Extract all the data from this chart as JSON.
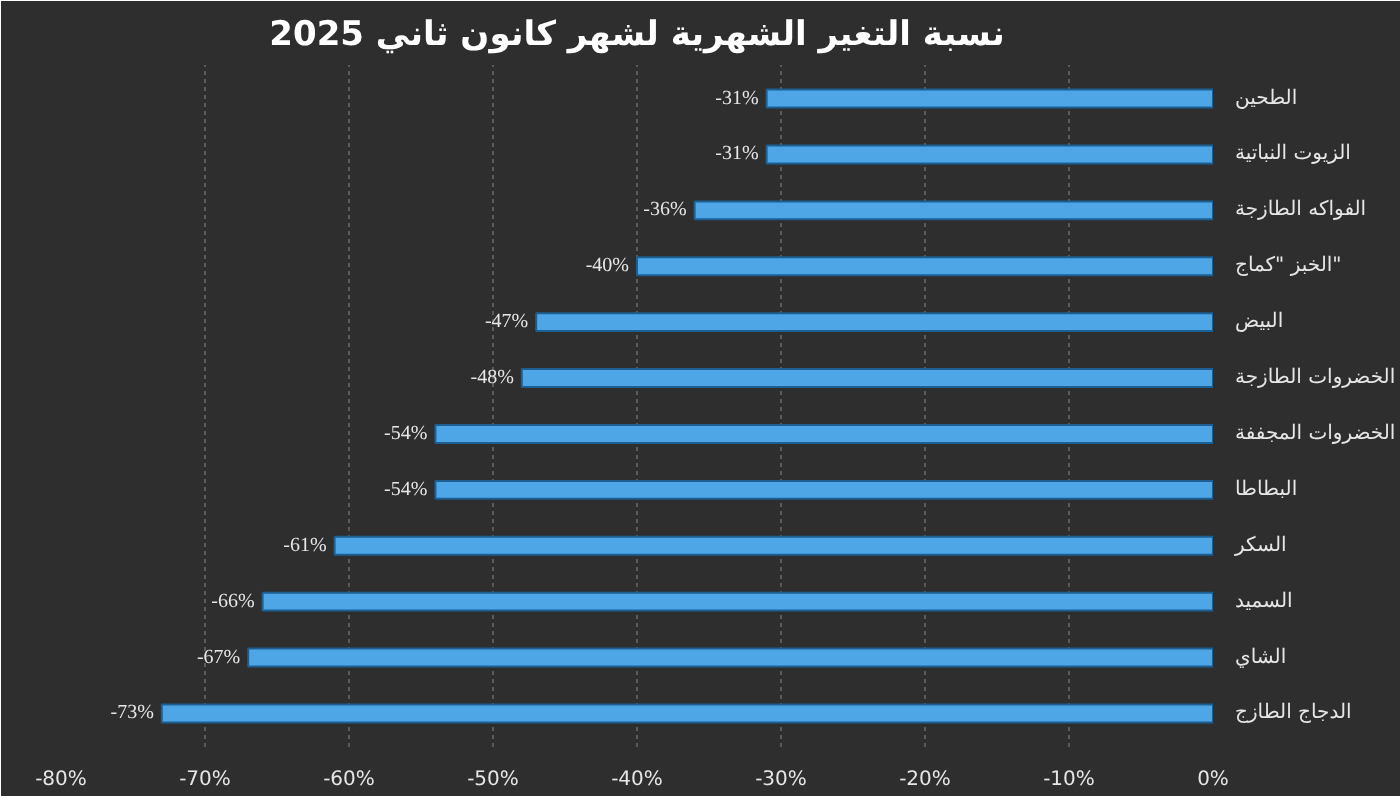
{
  "chart_data": {
    "type": "bar",
    "orientation": "horizontal",
    "title": "نسبة التغير الشهرية لشهر كانون ثاني 2025",
    "categories": [
      "الطحين",
      "الزيوت النباتية",
      "الفواكه الطازجة",
      "الخبز \"كماج\"",
      "البيض",
      "الخضروات الطازجة",
      "الخضروات المجففة",
      "البطاطا",
      "السكر",
      "السميد",
      "الشاي",
      "الدجاج الطازج"
    ],
    "values": [
      -31,
      -31,
      -36,
      -40,
      -47,
      -48,
      -54,
      -54,
      -61,
      -66,
      -67,
      -73
    ],
    "value_labels": [
      "-31%",
      "-31%",
      "-36%",
      "-40%",
      "-47%",
      "-48%",
      "-54%",
      "-54%",
      "-61%",
      "-66%",
      "-67%",
      "-73%"
    ],
    "color": "#4ea6e6",
    "xlim": [
      -80,
      0
    ],
    "xticks": [
      {
        "value": -80,
        "label": "-80%"
      },
      {
        "value": -70,
        "label": "-70%"
      },
      {
        "value": -60,
        "label": "-60%"
      },
      {
        "value": -50,
        "label": "-50%"
      },
      {
        "value": -40,
        "label": "-40%"
      },
      {
        "value": -30,
        "label": "-30%"
      },
      {
        "value": -20,
        "label": "-20%"
      },
      {
        "value": -10,
        "label": "-10%"
      },
      {
        "value": 0,
        "label": "0%"
      }
    ],
    "grid": "x"
  }
}
